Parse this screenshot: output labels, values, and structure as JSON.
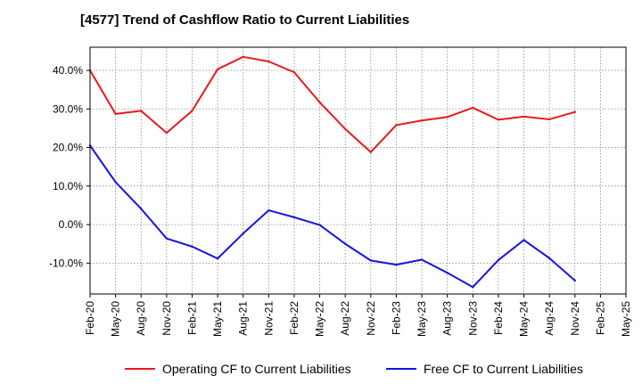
{
  "chart_data": {
    "type": "line",
    "title": "[4577]  Trend of Cashflow Ratio to Current Liabilities",
    "xlabel": "",
    "ylabel": "",
    "ylim": [
      -18,
      46
    ],
    "yticks": [
      40,
      30,
      20,
      10,
      0,
      -10
    ],
    "ytick_labels": [
      "40.0%",
      "30.0%",
      "20.0%",
      "10.0%",
      "0.0%",
      "-10.0%"
    ],
    "x": [
      "Feb-20",
      "May-20",
      "Aug-20",
      "Nov-20",
      "Feb-21",
      "May-21",
      "Aug-21",
      "Nov-21",
      "Feb-22",
      "May-22",
      "Aug-22",
      "Nov-22",
      "Feb-23",
      "May-23",
      "Aug-23",
      "Nov-23",
      "Feb-24",
      "May-24",
      "Aug-24",
      "Nov-24",
      "Feb-25",
      "May-25"
    ],
    "grid": true,
    "legend_position": "bottom",
    "series": [
      {
        "name": "Operating CF to Current Liabilities",
        "color": "#e8191c",
        "values": [
          40.0,
          28.7,
          29.5,
          23.8,
          29.5,
          40.3,
          43.5,
          42.3,
          39.5,
          31.7,
          24.8,
          18.8,
          25.8,
          27.0,
          27.9,
          30.3,
          27.2,
          28.0,
          27.3,
          29.2,
          null,
          null
        ]
      },
      {
        "name": "Free CF to Current Liabilities",
        "color": "#1515e0",
        "values": [
          20.5,
          11.0,
          4.1,
          -3.6,
          -5.7,
          -8.8,
          -2.3,
          3.7,
          1.9,
          -0.1,
          -5.0,
          -9.3,
          -10.4,
          -9.1,
          -12.5,
          -16.2,
          -9.2,
          -4.0,
          -8.7,
          -14.5,
          null,
          null
        ]
      }
    ]
  }
}
